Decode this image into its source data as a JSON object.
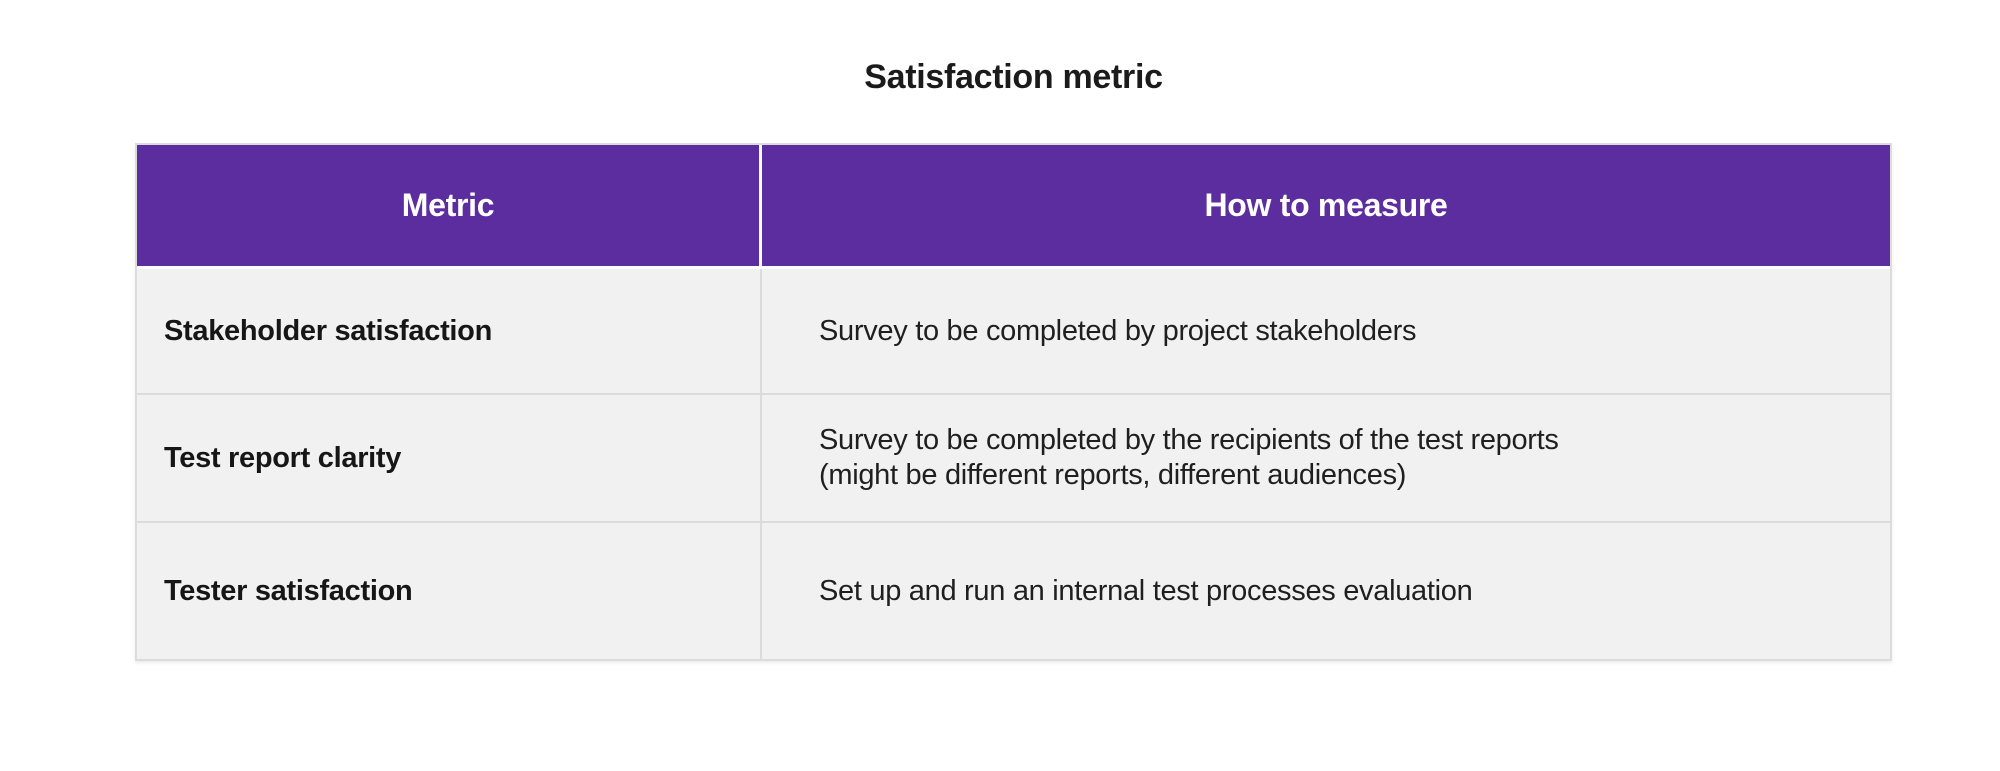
{
  "title": "Satisfaction metric",
  "table": {
    "columns": [
      {
        "label": "Metric"
      },
      {
        "label": "How to measure"
      }
    ],
    "rows": [
      {
        "metric": "Stakeholder satisfaction",
        "how_lines": [
          "Survey to be completed by project stakeholders"
        ]
      },
      {
        "metric": "Test report clarity",
        "how_lines": [
          "Survey to be completed by the recipients of the test reports",
          "(might be different reports, different audiences)"
        ]
      },
      {
        "metric": "Tester satisfaction",
        "how_lines": [
          "Set up and run an internal test processes evaluation"
        ]
      }
    ]
  },
  "colors": {
    "header_bg": "#5C2D9E",
    "header_text": "#FFFFFF",
    "row_bg": "#F1F1F1",
    "divider": "#DBDBDB",
    "outer_border": "#DCDCDC",
    "title_text": "#1B1B1B",
    "body_text": "#1F1F1F"
  }
}
